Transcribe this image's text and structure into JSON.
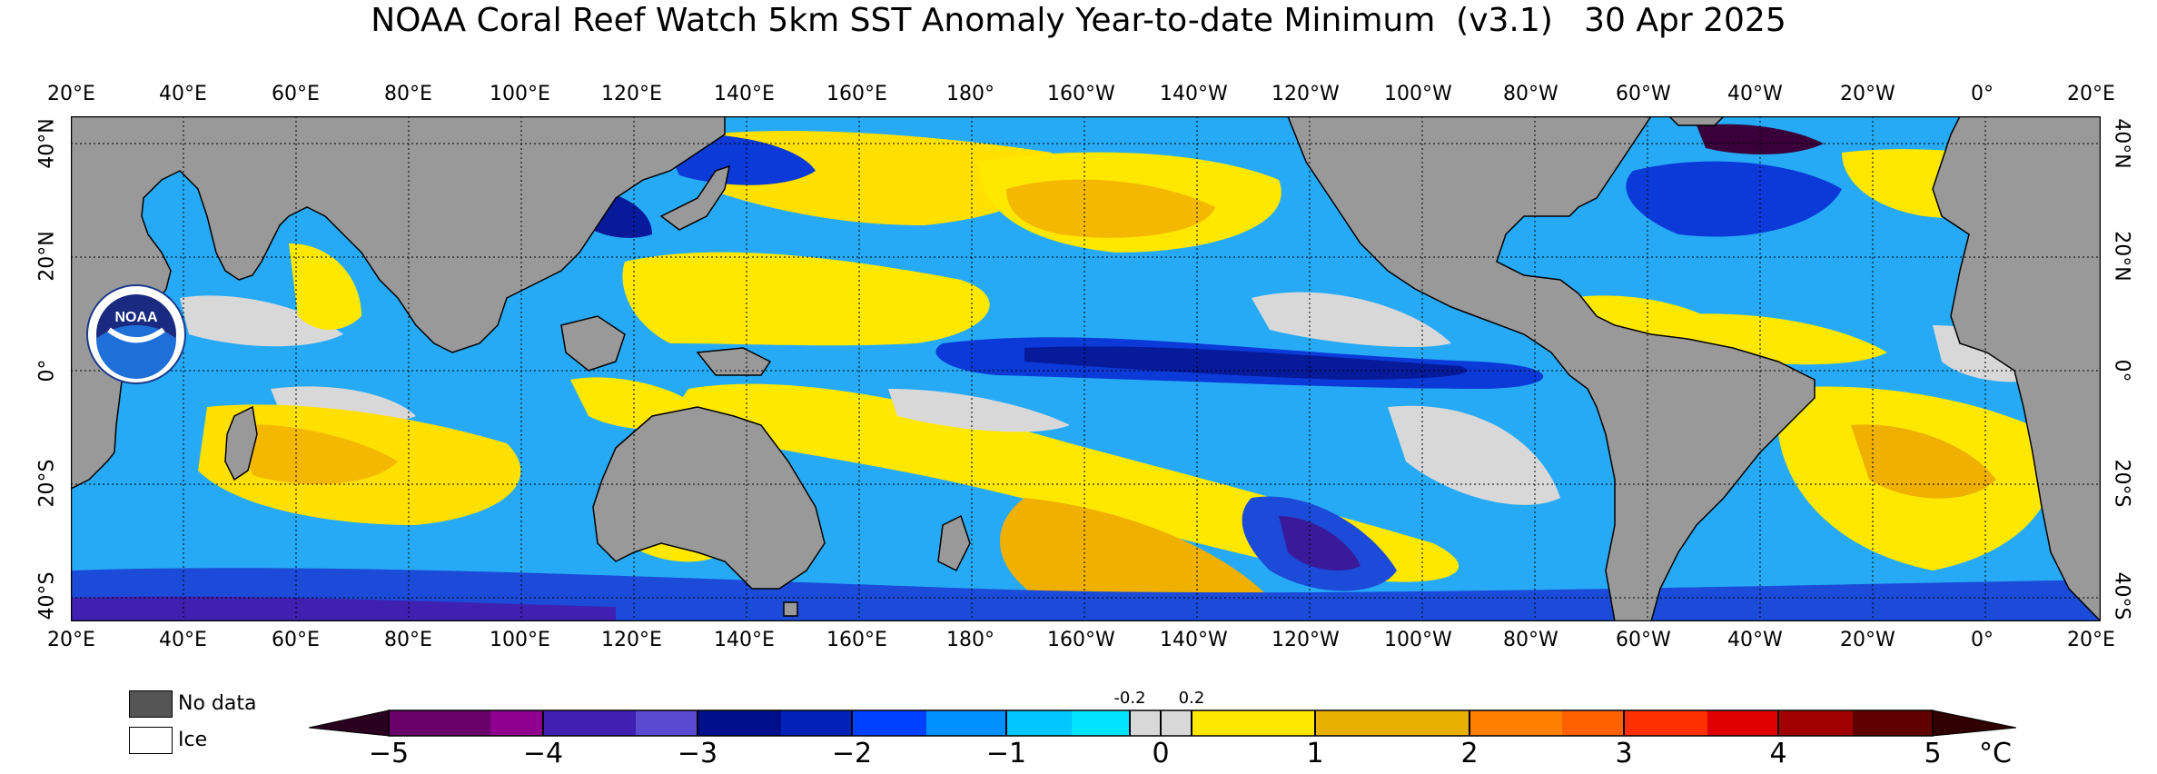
{
  "title": "NOAA Coral Reef Watch 5km SST Anomaly Year-to-date Minimum  (v3.1)   30 Apr 2025",
  "lon_labels": [
    "20°E",
    "40°E",
    "60°E",
    "80°E",
    "100°E",
    "120°E",
    "140°E",
    "160°E",
    "180°",
    "160°W",
    "140°W",
    "120°W",
    "100°W",
    "80°W",
    "60°W",
    "40°W",
    "20°W",
    "0°",
    "20°E"
  ],
  "lat_labels": [
    "40°N",
    "20°N",
    "0°",
    "20°S",
    "40°S"
  ],
  "logo_text": "NOAA",
  "legend": {
    "no_data": "No data",
    "ice": "Ice"
  },
  "colorbar": {
    "ticks": [
      "−5",
      "−4",
      "−3",
      "−2",
      "−1",
      "0",
      "1",
      "2",
      "3",
      "4",
      "5"
    ],
    "small_ticks": [
      "-0.2",
      "0.2"
    ],
    "unit": "°C",
    "colors": {
      "no_data": "#555555",
      "land": "#999999",
      "ice": "#ffffff",
      "deep_neg": "#3a003a",
      "neg5": "#6a006a",
      "neg4": "#4020b0",
      "neg3": "#00108a",
      "neg2": "#0040ff",
      "neg1": "#00c8ff",
      "near_zero": "#d8d8d8",
      "pos1": "#ffe800",
      "pos2": "#f0a000",
      "pos3": "#ff5000",
      "pos4": "#c00000",
      "pos5": "#400000"
    }
  }
}
